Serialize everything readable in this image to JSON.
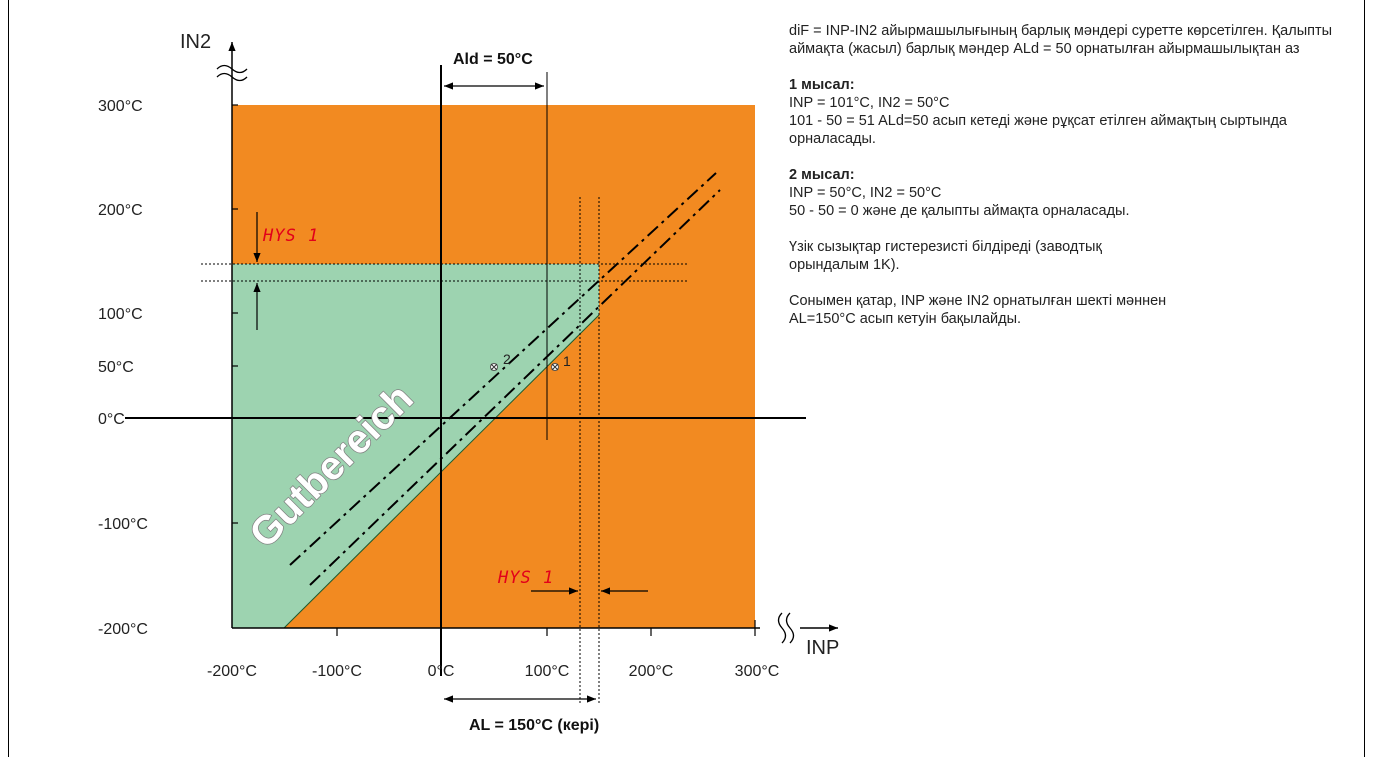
{
  "axes": {
    "y_axis_label": "IN2",
    "x_axis_label": "INP",
    "y_ticks": [
      "300°C",
      "200°C",
      "100°C",
      "50°C",
      "0°C",
      "-100°C",
      "-200°C"
    ],
    "x_ticks": [
      "-200°C",
      "-100°C",
      "0°C",
      "100°C",
      "200°C",
      "300°C"
    ]
  },
  "labels": {
    "ald": "Ald = 50°C",
    "al": "AL = 150°C (кері)",
    "hys_top": "HYS 1",
    "hys_bottom": "HYS 1",
    "point1": "1",
    "point2": "2",
    "good_zone": "Gutbereich"
  },
  "colors": {
    "alarm_zone": "#f28a21",
    "good_zone": "#9dd3b0"
  },
  "notes": {
    "intro": "diF = INP-IN2 айырмашылығының барлық мәндері суретте көрсетілген. Қалыпты аймақта (жасыл) барлық мәндер ALd = 50 орнатылған айырмашылықтан аз",
    "example1_title": "1 мысал:",
    "example1_line1": "INP = 101°C, IN2 = 50°C",
    "example1_line2": "101 - 50 = 51 ALd=50 асып кетеді және рұқсат етілген аймақтың сыртында орналасады.",
    "example2_title": "2 мысал:",
    "example2_line1": "INP = 50°C, IN2 = 50°C",
    "example2_line2": "50 - 50 = 0 және де қалыпты аймақта орналасады.",
    "dashes_note": "Үзік сызықтар гистерезисті білдіреді (заводтық орындалым 1K).",
    "al_note": "Сонымен қатар, INP және IN2 орнатылған шекті мәннен AL=150°C асып кетуін бақылайды."
  }
}
